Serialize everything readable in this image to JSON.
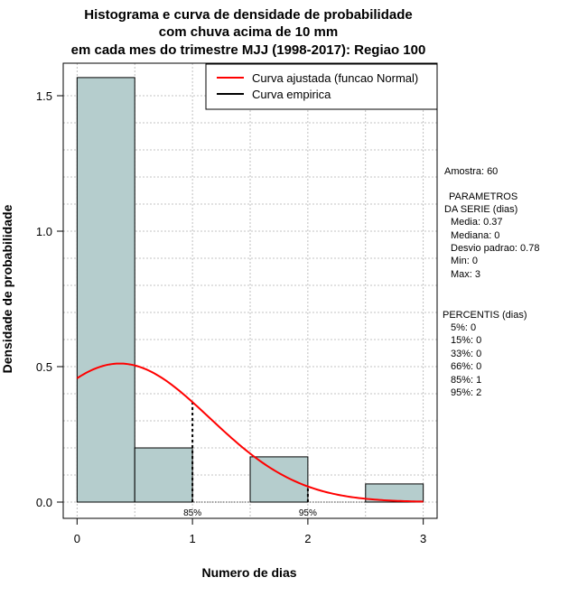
{
  "chart_data": {
    "type": "bar",
    "title_lines": [
      "Histograma e curva de densidade de probabilidade",
      "com chuva acima de 10 mm",
      "em cada mes do trimestre MJJ (1998-2017): Regiao 100"
    ],
    "xlabel": "Numero de dias",
    "ylabel": "Densidade de probabilidade",
    "xlim": [
      -0.12,
      3.12
    ],
    "ylim": [
      -0.06,
      1.62
    ],
    "x_ticks": [
      0,
      1,
      2,
      3
    ],
    "y_ticks": [
      0.0,
      0.5,
      1.0,
      1.5
    ],
    "x_tick_labels": [
      "0",
      "1",
      "2",
      "3"
    ],
    "y_tick_labels": [
      "0.0",
      "0.5",
      "1.0",
      "1.5"
    ],
    "grid": true,
    "bins": [
      {
        "x0": 0.0,
        "x1": 0.5,
        "density": 1.567
      },
      {
        "x0": 0.5,
        "x1": 1.0,
        "density": 0.2
      },
      {
        "x0": 1.0,
        "x1": 1.5,
        "density": 0.0
      },
      {
        "x0": 1.5,
        "x1": 2.0,
        "density": 0.167
      },
      {
        "x0": 2.0,
        "x1": 2.5,
        "density": 0.0
      },
      {
        "x0": 2.5,
        "x1": 3.0,
        "density": 0.067
      }
    ],
    "normal_fit": {
      "mean": 0.37,
      "sd": 0.78,
      "x_range": [
        0,
        3
      ]
    },
    "percentile_markers": [
      {
        "x": 1,
        "label": "85%"
      },
      {
        "x": 2,
        "label": "95%"
      }
    ],
    "legend": [
      {
        "label": "Curva ajustada (funcao Normal)",
        "color": "#ff0000"
      },
      {
        "label": "Curva empirica",
        "color": "#000000"
      }
    ],
    "legend_position": "top-right",
    "colors": {
      "bar_fill": "#b5cdcd",
      "curve": "#ff0000",
      "grid": "#b0b0b0"
    }
  },
  "side_panel": {
    "amostra": "Amostra: 60",
    "param_header_1": "PARAMETROS",
    "param_header_2": "DA SERIE (dias)",
    "params": [
      "Media: 0.37",
      "Mediana: 0",
      "Desvio padrao: 0.78",
      "Min: 0",
      "Max: 3"
    ],
    "percentis_header": "PERCENTIS (dias)",
    "percentis": [
      "5%: 0",
      "15%: 0",
      "33%: 0",
      "66%: 0",
      "85%: 1",
      "95%: 2"
    ]
  }
}
